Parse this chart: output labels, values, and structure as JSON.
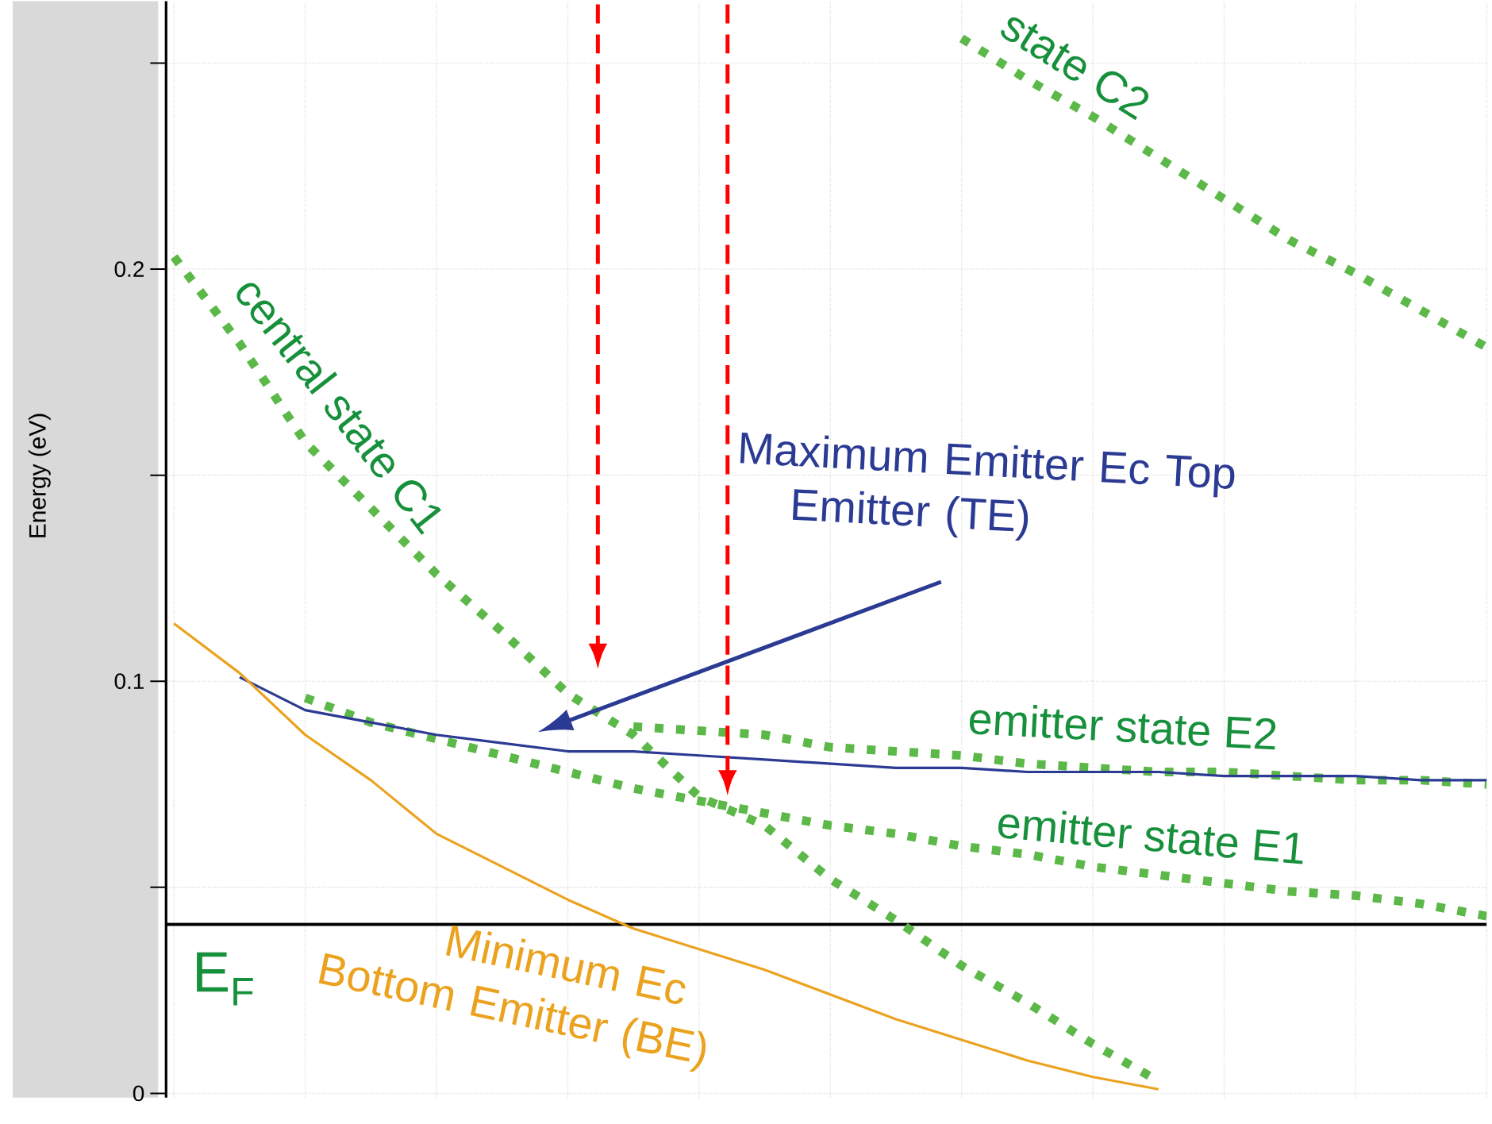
{
  "chart_data": {
    "type": "line",
    "ylabel": "Energy (eV)",
    "categories": [
      null,
      null,
      null,
      null,
      null,
      null,
      null,
      null,
      null,
      null,
      null,
      null,
      null,
      null,
      null,
      null,
      null,
      null,
      null,
      null,
      null
    ],
    "series": [
      {
        "name": "central state C1",
        "color": "#5cb848",
        "line_style": "dotted",
        "values": [
          0.203,
          0.182,
          0.158,
          0.142,
          0.126,
          0.112,
          0.097,
          0.087,
          0.072,
          0.065,
          0.052,
          0.042,
          0.031,
          0.022,
          0.012,
          0.003,
          null,
          null,
          null,
          null,
          null
        ]
      },
      {
        "name": "state C2",
        "color": "#5cb848",
        "line_style": "dotted",
        "values": [
          null,
          null,
          null,
          null,
          null,
          null,
          null,
          null,
          null,
          null,
          null,
          null,
          0.256,
          0.246,
          0.237,
          0.227,
          0.217,
          0.207,
          0.199,
          0.19,
          0.181
        ]
      },
      {
        "name": "emitter state E2",
        "color": "#5cb848",
        "line_style": "dotted",
        "values": [
          null,
          null,
          null,
          null,
          null,
          null,
          null,
          0.089,
          0.088,
          0.087,
          0.084,
          0.083,
          0.082,
          0.08,
          0.079,
          0.078,
          0.078,
          0.077,
          0.076,
          0.076,
          0.075
        ]
      },
      {
        "name": "emitter state E1",
        "color": "#5cb848",
        "line_style": "dotted",
        "values": [
          null,
          null,
          0.096,
          0.09,
          0.086,
          0.082,
          0.078,
          0.074,
          0.071,
          0.068,
          0.065,
          0.063,
          0.06,
          0.058,
          0.055,
          0.053,
          0.051,
          0.049,
          0.048,
          0.046,
          0.043
        ]
      },
      {
        "name": "Maximum Emitter Ec Top Emitter (TE)",
        "color": "#2b3a93",
        "line_style": "solid",
        "values": [
          null,
          0.101,
          0.093,
          0.09,
          0.087,
          0.085,
          0.083,
          0.083,
          0.082,
          0.081,
          0.08,
          0.079,
          0.079,
          0.078,
          0.078,
          0.078,
          0.077,
          0.077,
          0.077,
          0.076,
          0.076
        ]
      },
      {
        "name": "Minimum Ec Bottom Emitter (BE)",
        "color": "#eba21f",
        "line_style": "solid",
        "values": [
          0.114,
          0.102,
          0.087,
          0.076,
          0.063,
          0.055,
          0.047,
          0.04,
          0.035,
          0.03,
          0.024,
          0.018,
          0.013,
          0.008,
          0.004,
          0.001,
          null,
          null,
          null,
          null,
          null
        ]
      }
    ],
    "ylim": [
      -0.001,
      0.265
    ],
    "yticks": [
      0,
      {
        "value": 0.05,
        "label": null
      },
      0.1,
      {
        "value": 0.15,
        "label": null
      },
      0.2,
      {
        "value": 0.25,
        "label": null
      }
    ],
    "ref_lines": [
      {
        "axis": "y",
        "value": 0.041,
        "label": "E$_{F}$",
        "color": "#000000"
      }
    ],
    "grid": true,
    "tick_labels": "y"
  }
}
